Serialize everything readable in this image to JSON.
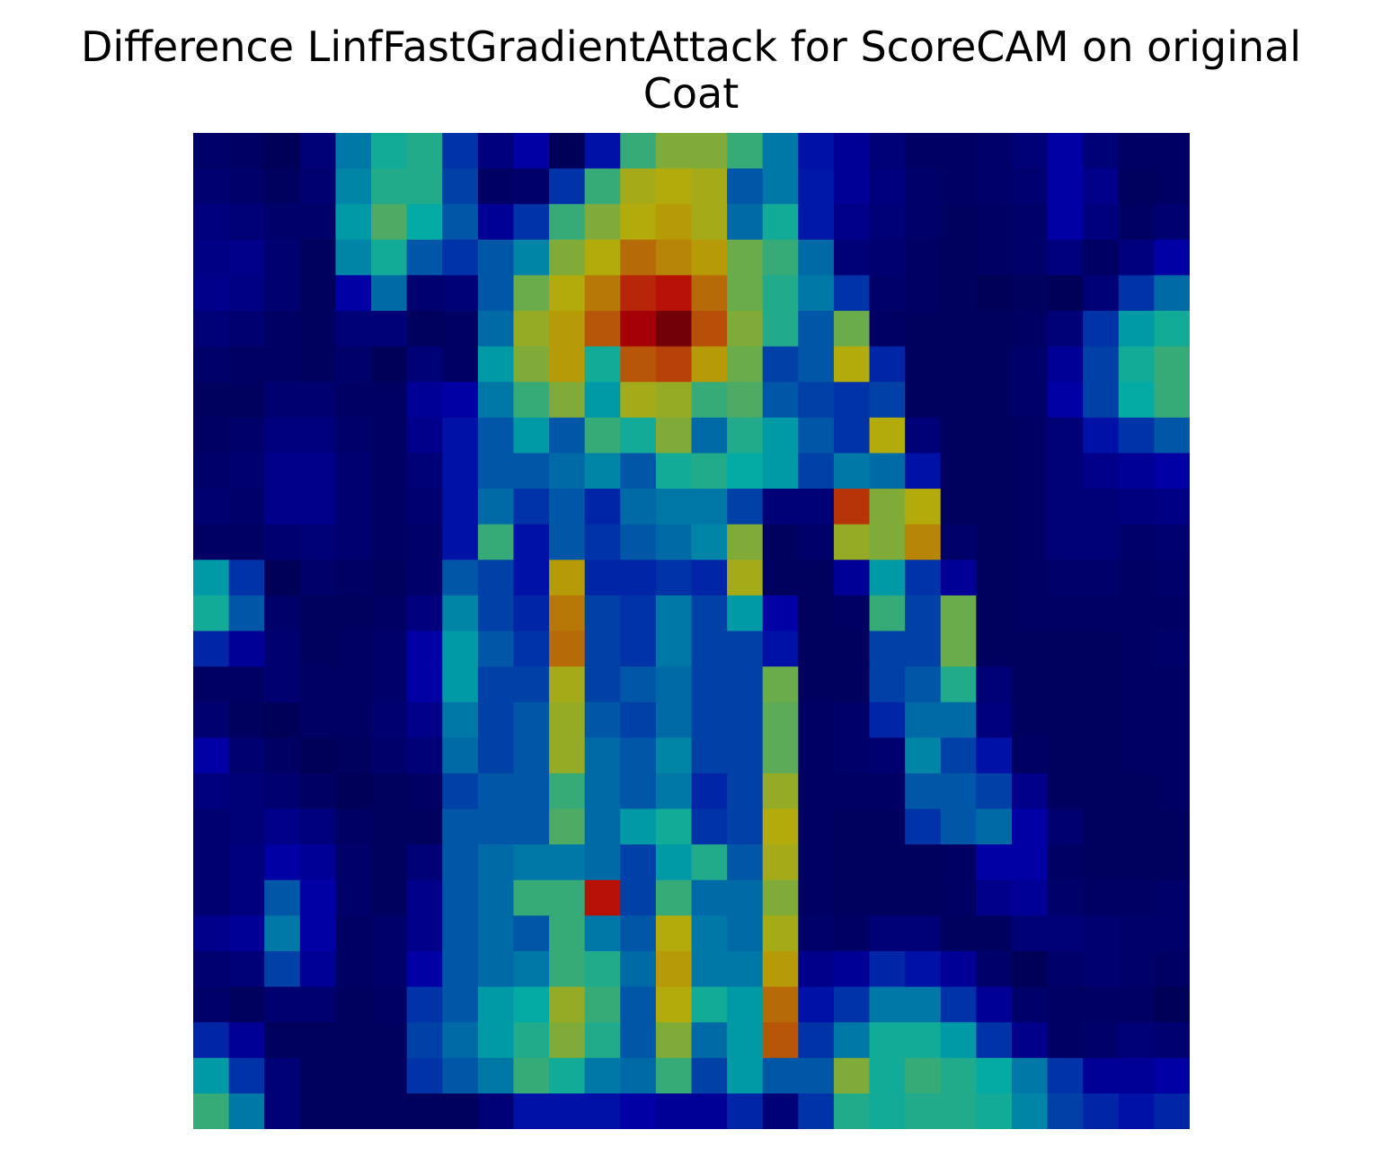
{
  "title_lines": [
    "Difference LinfFastGradientAttack for ScoreCAM on original",
    "Coat"
  ],
  "chart_data": {
    "type": "heatmap",
    "title": "Difference LinfFastGradientAttack for ScoreCAM on original Coat",
    "rows": 28,
    "cols": 28,
    "axes": "off",
    "colormap_overlay": "jet over grayscale image",
    "value_range": [
      0,
      1
    ],
    "description_of_values": "estimated per-cell heat intensity read from colors",
    "values": [
      [
        0.03,
        0.02,
        0.0,
        0.05,
        0.3,
        0.4,
        0.42,
        0.2,
        0.06,
        0.12,
        0.0,
        0.15,
        0.45,
        0.55,
        0.55,
        0.45,
        0.3,
        0.15,
        0.1,
        0.05,
        0.02,
        0.02,
        0.03,
        0.05,
        0.12,
        0.05,
        0.02,
        0.02
      ],
      [
        0.04,
        0.03,
        0.01,
        0.04,
        0.32,
        0.42,
        0.42,
        0.22,
        0.02,
        0.03,
        0.2,
        0.45,
        0.6,
        0.62,
        0.6,
        0.25,
        0.3,
        0.16,
        0.1,
        0.06,
        0.03,
        0.02,
        0.03,
        0.04,
        0.12,
        0.08,
        0.01,
        0.02
      ],
      [
        0.06,
        0.05,
        0.03,
        0.03,
        0.35,
        0.48,
        0.38,
        0.25,
        0.1,
        0.2,
        0.45,
        0.55,
        0.62,
        0.65,
        0.6,
        0.28,
        0.4,
        0.16,
        0.08,
        0.05,
        0.03,
        0.01,
        0.02,
        0.03,
        0.12,
        0.06,
        0.02,
        0.04
      ],
      [
        0.07,
        0.08,
        0.04,
        0.01,
        0.32,
        0.4,
        0.25,
        0.2,
        0.25,
        0.32,
        0.55,
        0.62,
        0.72,
        0.68,
        0.65,
        0.52,
        0.45,
        0.28,
        0.05,
        0.04,
        0.02,
        0.01,
        0.02,
        0.03,
        0.06,
        0.02,
        0.06,
        0.12
      ],
      [
        0.08,
        0.07,
        0.04,
        0.01,
        0.12,
        0.28,
        0.04,
        0.05,
        0.25,
        0.52,
        0.62,
        0.7,
        0.82,
        0.85,
        0.72,
        0.52,
        0.42,
        0.3,
        0.2,
        0.03,
        0.02,
        0.01,
        0.0,
        0.01,
        0.0,
        0.05,
        0.2,
        0.28
      ],
      [
        0.05,
        0.04,
        0.02,
        0.01,
        0.05,
        0.05,
        0.01,
        0.02,
        0.28,
        0.58,
        0.65,
        0.75,
        0.9,
        0.97,
        0.76,
        0.55,
        0.42,
        0.25,
        0.52,
        0.02,
        0.01,
        0.01,
        0.01,
        0.02,
        0.05,
        0.2,
        0.35,
        0.4
      ],
      [
        0.03,
        0.02,
        0.02,
        0.01,
        0.03,
        0.0,
        0.05,
        0.02,
        0.35,
        0.55,
        0.65,
        0.4,
        0.75,
        0.78,
        0.65,
        0.52,
        0.22,
        0.25,
        0.62,
        0.18,
        0.01,
        0.01,
        0.01,
        0.03,
        0.1,
        0.22,
        0.4,
        0.45
      ],
      [
        0.01,
        0.01,
        0.04,
        0.04,
        0.02,
        0.02,
        0.1,
        0.12,
        0.3,
        0.45,
        0.55,
        0.35,
        0.6,
        0.58,
        0.45,
        0.48,
        0.25,
        0.22,
        0.2,
        0.22,
        0.01,
        0.01,
        0.01,
        0.03,
        0.12,
        0.22,
        0.38,
        0.45
      ],
      [
        0.02,
        0.03,
        0.06,
        0.06,
        0.03,
        0.02,
        0.08,
        0.15,
        0.25,
        0.35,
        0.25,
        0.45,
        0.4,
        0.55,
        0.28,
        0.42,
        0.35,
        0.25,
        0.2,
        0.62,
        0.05,
        0.01,
        0.01,
        0.02,
        0.05,
        0.15,
        0.2,
        0.25
      ],
      [
        0.03,
        0.04,
        0.08,
        0.08,
        0.04,
        0.02,
        0.05,
        0.15,
        0.25,
        0.25,
        0.28,
        0.32,
        0.25,
        0.4,
        0.42,
        0.38,
        0.35,
        0.22,
        0.3,
        0.28,
        0.15,
        0.01,
        0.01,
        0.02,
        0.05,
        0.08,
        0.1,
        0.12
      ],
      [
        0.04,
        0.03,
        0.08,
        0.08,
        0.04,
        0.02,
        0.04,
        0.15,
        0.28,
        0.2,
        0.25,
        0.18,
        0.28,
        0.3,
        0.3,
        0.22,
        0.05,
        0.05,
        0.8,
        0.55,
        0.62,
        0.01,
        0.01,
        0.02,
        0.05,
        0.05,
        0.06,
        0.07
      ],
      [
        0.02,
        0.02,
        0.04,
        0.05,
        0.04,
        0.02,
        0.03,
        0.15,
        0.45,
        0.15,
        0.25,
        0.2,
        0.25,
        0.28,
        0.32,
        0.55,
        0.01,
        0.03,
        0.58,
        0.55,
        0.68,
        0.03,
        0.01,
        0.02,
        0.05,
        0.05,
        0.03,
        0.04
      ],
      [
        0.35,
        0.2,
        0.0,
        0.03,
        0.02,
        0.01,
        0.03,
        0.25,
        0.22,
        0.15,
        0.65,
        0.18,
        0.18,
        0.2,
        0.18,
        0.6,
        0.01,
        0.01,
        0.1,
        0.35,
        0.2,
        0.1,
        0.01,
        0.02,
        0.03,
        0.03,
        0.02,
        0.03
      ],
      [
        0.4,
        0.25,
        0.03,
        0.01,
        0.01,
        0.02,
        0.06,
        0.32,
        0.22,
        0.18,
        0.7,
        0.22,
        0.2,
        0.3,
        0.22,
        0.35,
        0.12,
        0.01,
        0.02,
        0.45,
        0.22,
        0.52,
        0.01,
        0.02,
        0.02,
        0.02,
        0.02,
        0.02
      ],
      [
        0.18,
        0.1,
        0.04,
        0.01,
        0.02,
        0.03,
        0.12,
        0.35,
        0.25,
        0.2,
        0.72,
        0.22,
        0.2,
        0.3,
        0.22,
        0.22,
        0.15,
        0.01,
        0.01,
        0.22,
        0.22,
        0.52,
        0.01,
        0.01,
        0.01,
        0.01,
        0.02,
        0.03
      ],
      [
        0.02,
        0.02,
        0.04,
        0.02,
        0.02,
        0.03,
        0.12,
        0.35,
        0.22,
        0.22,
        0.6,
        0.22,
        0.25,
        0.28,
        0.22,
        0.22,
        0.52,
        0.01,
        0.01,
        0.22,
        0.25,
        0.42,
        0.05,
        0.01,
        0.01,
        0.01,
        0.02,
        0.02
      ],
      [
        0.04,
        0.01,
        0.0,
        0.02,
        0.02,
        0.04,
        0.08,
        0.3,
        0.22,
        0.25,
        0.58,
        0.25,
        0.22,
        0.28,
        0.22,
        0.22,
        0.5,
        0.02,
        0.03,
        0.18,
        0.28,
        0.28,
        0.06,
        0.01,
        0.01,
        0.01,
        0.02,
        0.02
      ],
      [
        0.12,
        0.04,
        0.02,
        0.0,
        0.01,
        0.03,
        0.05,
        0.28,
        0.22,
        0.25,
        0.58,
        0.28,
        0.25,
        0.32,
        0.22,
        0.22,
        0.5,
        0.02,
        0.03,
        0.04,
        0.32,
        0.22,
        0.15,
        0.02,
        0.01,
        0.01,
        0.02,
        0.02
      ],
      [
        0.06,
        0.05,
        0.04,
        0.02,
        0.0,
        0.01,
        0.02,
        0.22,
        0.25,
        0.25,
        0.45,
        0.28,
        0.25,
        0.3,
        0.18,
        0.22,
        0.58,
        0.02,
        0.02,
        0.02,
        0.25,
        0.25,
        0.22,
        0.08,
        0.01,
        0.01,
        0.01,
        0.02
      ],
      [
        0.04,
        0.05,
        0.08,
        0.06,
        0.02,
        0.01,
        0.01,
        0.25,
        0.25,
        0.25,
        0.48,
        0.28,
        0.35,
        0.4,
        0.2,
        0.22,
        0.62,
        0.02,
        0.01,
        0.01,
        0.2,
        0.25,
        0.28,
        0.12,
        0.04,
        0.01,
        0.01,
        0.01
      ],
      [
        0.04,
        0.06,
        0.12,
        0.1,
        0.03,
        0.01,
        0.05,
        0.25,
        0.28,
        0.3,
        0.3,
        0.28,
        0.22,
        0.35,
        0.42,
        0.25,
        0.6,
        0.02,
        0.01,
        0.01,
        0.01,
        0.02,
        0.12,
        0.12,
        0.02,
        0.01,
        0.01,
        0.01
      ],
      [
        0.04,
        0.06,
        0.25,
        0.12,
        0.03,
        0.01,
        0.08,
        0.25,
        0.28,
        0.45,
        0.45,
        0.85,
        0.22,
        0.45,
        0.28,
        0.28,
        0.55,
        0.02,
        0.01,
        0.01,
        0.01,
        0.02,
        0.08,
        0.1,
        0.03,
        0.02,
        0.02,
        0.03
      ],
      [
        0.08,
        0.1,
        0.3,
        0.12,
        0.02,
        0.03,
        0.08,
        0.25,
        0.28,
        0.25,
        0.45,
        0.3,
        0.25,
        0.62,
        0.3,
        0.28,
        0.6,
        0.03,
        0.02,
        0.05,
        0.05,
        0.01,
        0.01,
        0.05,
        0.05,
        0.04,
        0.03,
        0.03
      ],
      [
        0.04,
        0.05,
        0.22,
        0.1,
        0.02,
        0.03,
        0.12,
        0.25,
        0.28,
        0.3,
        0.45,
        0.42,
        0.28,
        0.65,
        0.3,
        0.3,
        0.65,
        0.08,
        0.1,
        0.18,
        0.15,
        0.1,
        0.03,
        0.0,
        0.03,
        0.04,
        0.03,
        0.02
      ],
      [
        0.03,
        0.01,
        0.04,
        0.04,
        0.01,
        0.02,
        0.2,
        0.25,
        0.35,
        0.38,
        0.58,
        0.45,
        0.25,
        0.62,
        0.4,
        0.35,
        0.72,
        0.15,
        0.2,
        0.3,
        0.3,
        0.2,
        0.1,
        0.03,
        0.02,
        0.02,
        0.02,
        0.0
      ],
      [
        0.18,
        0.1,
        0.01,
        0.01,
        0.01,
        0.01,
        0.22,
        0.28,
        0.35,
        0.42,
        0.55,
        0.42,
        0.25,
        0.55,
        0.28,
        0.35,
        0.75,
        0.2,
        0.3,
        0.4,
        0.4,
        0.35,
        0.2,
        0.08,
        0.02,
        0.03,
        0.05,
        0.04
      ],
      [
        0.35,
        0.2,
        0.05,
        0.01,
        0.01,
        0.01,
        0.2,
        0.25,
        0.3,
        0.45,
        0.4,
        0.3,
        0.28,
        0.45,
        0.22,
        0.35,
        0.25,
        0.25,
        0.55,
        0.4,
        0.45,
        0.42,
        0.38,
        0.3,
        0.2,
        0.1,
        0.1,
        0.12
      ],
      [
        0.45,
        0.3,
        0.05,
        0.01,
        0.01,
        0.01,
        0.01,
        0.01,
        0.05,
        0.15,
        0.15,
        0.15,
        0.12,
        0.1,
        0.1,
        0.18,
        0.05,
        0.2,
        0.42,
        0.4,
        0.42,
        0.42,
        0.4,
        0.32,
        0.22,
        0.18,
        0.15,
        0.18
      ]
    ]
  }
}
